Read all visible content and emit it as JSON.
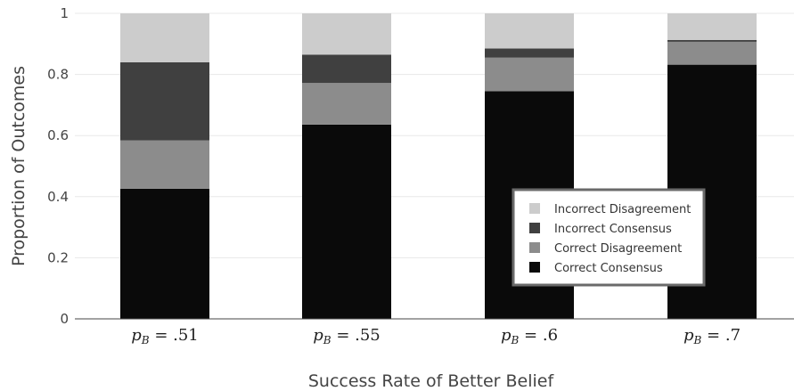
{
  "chart_data": {
    "type": "bar",
    "stacked": true,
    "categories": [
      "p_B = .51",
      "p_B = .55",
      "p_B = .6",
      "p_B = .7"
    ],
    "series": [
      {
        "name": "Correct Consensus",
        "values": [
          0.426,
          0.636,
          0.745,
          0.832
        ],
        "color": "#0a0a0a"
      },
      {
        "name": "Correct Disagreement",
        "values": [
          0.158,
          0.136,
          0.11,
          0.075
        ],
        "color": "#8c8c8c"
      },
      {
        "name": "Incorrect Consensus",
        "values": [
          0.256,
          0.093,
          0.03,
          0.006
        ],
        "color": "#404040"
      },
      {
        "name": "Incorrect Disagreement",
        "values": [
          0.16,
          0.135,
          0.115,
          0.087
        ],
        "color": "#cccccc"
      }
    ],
    "xlabel": "Success Rate of Better Belief",
    "ylabel": "Proportion of Outcomes",
    "ylim": [
      0,
      1
    ],
    "yticks": [
      0,
      0.2,
      0.4,
      0.6,
      0.8,
      1
    ],
    "ytick_labels": [
      "0",
      "0.2",
      "0.4",
      "0.6",
      "0.8",
      "1"
    ],
    "legend": {
      "placement": "bottom-right",
      "entries": [
        "Incorrect Disagreement",
        "Incorrect Consensus",
        "Correct Disagreement",
        "Correct Consensus"
      ]
    },
    "grid": true
  }
}
